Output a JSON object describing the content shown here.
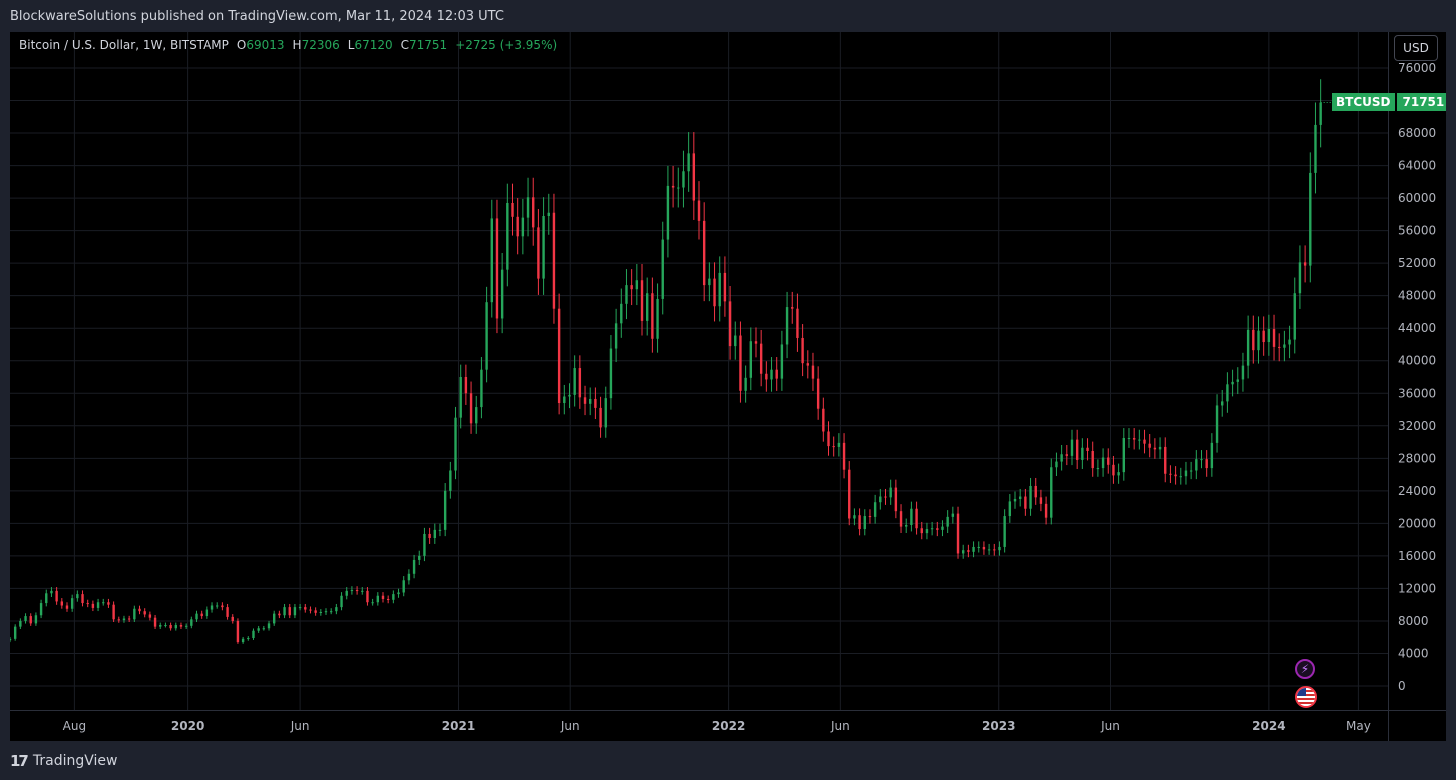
{
  "header": {
    "publisher_line": "BlockwareSolutions published on TradingView.com, Mar 11, 2024 12:03 UTC"
  },
  "legend": {
    "symbol": "Bitcoin / U.S. Dollar, 1W, BITSTAMP",
    "open_label": "O",
    "open": "69013",
    "high_label": "H",
    "high": "72306",
    "low_label": "L",
    "low": "67120",
    "close_label": "C",
    "close": "71751",
    "change": "+2725 (+3.95%)"
  },
  "currency_button": "USD",
  "price_tag": {
    "symbol": "BTCUSD",
    "price": "71751"
  },
  "footer": {
    "brand": "TradingView"
  },
  "colors": {
    "up": "#26a65b",
    "down": "#f23645",
    "bg": "#000000",
    "grid": "#1a1d24",
    "axis_text": "#b2b5be"
  },
  "chart_data": {
    "type": "candlestick",
    "title": "Bitcoin / U.S. Dollar, 1W, BITSTAMP",
    "x_ticks": [
      {
        "date": "2019-08-01",
        "label": "Aug"
      },
      {
        "date": "2020-01-01",
        "label": "2020"
      },
      {
        "date": "2020-06-01",
        "label": "Jun"
      },
      {
        "date": "2021-01-01",
        "label": "2021"
      },
      {
        "date": "2021-06-01",
        "label": "Jun"
      },
      {
        "date": "2022-01-01",
        "label": "2022"
      },
      {
        "date": "2022-06-01",
        "label": "Jun"
      },
      {
        "date": "2023-01-01",
        "label": "2023"
      },
      {
        "date": "2023-06-01",
        "label": "Jun"
      },
      {
        "date": "2024-01-01",
        "label": "2024"
      },
      {
        "date": "2024-05-01",
        "label": "May"
      }
    ],
    "y_ticks": [
      0,
      4000,
      8000,
      12000,
      16000,
      20000,
      24000,
      28000,
      32000,
      36000,
      40000,
      44000,
      48000,
      52000,
      56000,
      60000,
      64000,
      68000,
      72000,
      76000
    ],
    "ylim": [
      0,
      76000
    ],
    "xlim": [
      "2019-05-06",
      "2024-06-10"
    ],
    "series": [
      {
        "name": "BTCUSD",
        "close_points": [
          [
            "2019-05-06",
            5800
          ],
          [
            "2019-05-13",
            7300
          ],
          [
            "2019-05-20",
            8000
          ],
          [
            "2019-05-27",
            8600
          ],
          [
            "2019-06-03",
            7700
          ],
          [
            "2019-06-10",
            8700
          ],
          [
            "2019-06-17",
            10200
          ],
          [
            "2019-06-24",
            11400
          ],
          [
            "2019-07-01",
            11700
          ],
          [
            "2019-07-08",
            10400
          ],
          [
            "2019-07-15",
            9900
          ],
          [
            "2019-07-22",
            9500
          ],
          [
            "2019-07-29",
            10800
          ],
          [
            "2019-08-05",
            11300
          ],
          [
            "2019-08-12",
            10200
          ],
          [
            "2019-08-19",
            10100
          ],
          [
            "2019-08-26",
            9600
          ],
          [
            "2019-09-02",
            10300
          ],
          [
            "2019-09-09",
            10300
          ],
          [
            "2019-09-16",
            10000
          ],
          [
            "2019-09-23",
            8200
          ],
          [
            "2019-09-30",
            8100
          ],
          [
            "2019-10-07",
            8300
          ],
          [
            "2019-10-14",
            8200
          ],
          [
            "2019-10-21",
            9500
          ],
          [
            "2019-10-28",
            9200
          ],
          [
            "2019-11-04",
            8800
          ],
          [
            "2019-11-11",
            8400
          ],
          [
            "2019-11-18",
            7300
          ],
          [
            "2019-11-25",
            7500
          ],
          [
            "2019-12-02",
            7500
          ],
          [
            "2019-12-09",
            7100
          ],
          [
            "2019-12-16",
            7500
          ],
          [
            "2019-12-23",
            7300
          ],
          [
            "2019-12-30",
            7400
          ],
          [
            "2020-01-06",
            8200
          ],
          [
            "2020-01-13",
            8900
          ],
          [
            "2020-01-20",
            8600
          ],
          [
            "2020-01-27",
            9400
          ],
          [
            "2020-02-03",
            9900
          ],
          [
            "2020-02-10",
            9900
          ],
          [
            "2020-02-17",
            9700
          ],
          [
            "2020-02-24",
            8500
          ],
          [
            "2020-03-02",
            8000
          ],
          [
            "2020-03-09",
            5400
          ],
          [
            "2020-03-16",
            5800
          ],
          [
            "2020-03-23",
            5900
          ],
          [
            "2020-03-30",
            6800
          ],
          [
            "2020-04-06",
            7100
          ],
          [
            "2020-04-13",
            7100
          ],
          [
            "2020-04-20",
            7700
          ],
          [
            "2020-04-27",
            8900
          ],
          [
            "2020-05-04",
            8700
          ],
          [
            "2020-05-11",
            9700
          ],
          [
            "2020-05-18",
            8700
          ],
          [
            "2020-05-25",
            9700
          ],
          [
            "2020-06-01",
            9700
          ],
          [
            "2020-06-08",
            9400
          ],
          [
            "2020-06-15",
            9300
          ],
          [
            "2020-06-22",
            9000
          ],
          [
            "2020-06-29",
            9100
          ],
          [
            "2020-07-06",
            9200
          ],
          [
            "2020-07-13",
            9200
          ],
          [
            "2020-07-20",
            9700
          ],
          [
            "2020-07-27",
            11100
          ],
          [
            "2020-08-03",
            11700
          ],
          [
            "2020-08-10",
            11800
          ],
          [
            "2020-08-17",
            11700
          ],
          [
            "2020-08-24",
            11700
          ],
          [
            "2020-08-31",
            10300
          ],
          [
            "2020-09-07",
            10300
          ],
          [
            "2020-09-14",
            11100
          ],
          [
            "2020-09-21",
            10700
          ],
          [
            "2020-09-28",
            10600
          ],
          [
            "2020-10-05",
            11300
          ],
          [
            "2020-10-12",
            11500
          ],
          [
            "2020-10-19",
            13000
          ],
          [
            "2020-10-26",
            13800
          ],
          [
            "2020-11-02",
            15500
          ],
          [
            "2020-11-09",
            16000
          ],
          [
            "2020-11-16",
            18700
          ],
          [
            "2020-11-23",
            18200
          ],
          [
            "2020-11-30",
            19200
          ],
          [
            "2020-12-07",
            19200
          ],
          [
            "2020-12-14",
            24000
          ],
          [
            "2020-12-21",
            26500
          ],
          [
            "2020-12-28",
            33000
          ],
          [
            "2021-01-04",
            38000
          ],
          [
            "2021-01-11",
            36000
          ],
          [
            "2021-01-18",
            32300
          ],
          [
            "2021-01-25",
            34300
          ],
          [
            "2021-02-01",
            38900
          ],
          [
            "2021-02-08",
            47200
          ],
          [
            "2021-02-15",
            57500
          ],
          [
            "2021-02-22",
            45200
          ],
          [
            "2021-03-01",
            51200
          ],
          [
            "2021-03-08",
            59400
          ],
          [
            "2021-03-15",
            57700
          ],
          [
            "2021-03-22",
            55300
          ],
          [
            "2021-03-29",
            57600
          ],
          [
            "2021-04-05",
            60100
          ],
          [
            "2021-04-12",
            56400
          ],
          [
            "2021-04-19",
            50100
          ],
          [
            "2021-04-26",
            57800
          ],
          [
            "2021-05-03",
            58200
          ],
          [
            "2021-05-10",
            46400
          ],
          [
            "2021-05-17",
            34800
          ],
          [
            "2021-05-24",
            35600
          ],
          [
            "2021-05-31",
            35800
          ],
          [
            "2021-06-07",
            39100
          ],
          [
            "2021-06-14",
            35500
          ],
          [
            "2021-06-21",
            34700
          ],
          [
            "2021-06-28",
            35300
          ],
          [
            "2021-07-05",
            34200
          ],
          [
            "2021-07-12",
            31800
          ],
          [
            "2021-07-19",
            35400
          ],
          [
            "2021-07-26",
            41500
          ],
          [
            "2021-08-02",
            44600
          ],
          [
            "2021-08-09",
            47000
          ],
          [
            "2021-08-16",
            49300
          ],
          [
            "2021-08-23",
            48800
          ],
          [
            "2021-08-30",
            49900
          ],
          [
            "2021-09-06",
            44900
          ],
          [
            "2021-09-13",
            48300
          ],
          [
            "2021-09-20",
            42700
          ],
          [
            "2021-09-27",
            47600
          ],
          [
            "2021-10-04",
            54900
          ],
          [
            "2021-10-11",
            61500
          ],
          [
            "2021-10-18",
            61300
          ],
          [
            "2021-10-25",
            61300
          ],
          [
            "2021-11-01",
            63300
          ],
          [
            "2021-11-08",
            65500
          ],
          [
            "2021-11-15",
            59700
          ],
          [
            "2021-11-22",
            57200
          ],
          [
            "2021-11-29",
            49300
          ],
          [
            "2021-12-06",
            50100
          ],
          [
            "2021-12-13",
            46700
          ],
          [
            "2021-12-20",
            50800
          ],
          [
            "2021-12-27",
            47300
          ],
          [
            "2022-01-03",
            41800
          ],
          [
            "2022-01-10",
            43100
          ],
          [
            "2022-01-17",
            36300
          ],
          [
            "2022-01-24",
            37900
          ],
          [
            "2022-01-31",
            42400
          ],
          [
            "2022-02-07",
            42100
          ],
          [
            "2022-02-14",
            38400
          ],
          [
            "2022-02-21",
            37700
          ],
          [
            "2022-02-28",
            38900
          ],
          [
            "2022-03-07",
            37800
          ],
          [
            "2022-03-14",
            42000
          ],
          [
            "2022-03-21",
            46600
          ],
          [
            "2022-03-28",
            46400
          ],
          [
            "2022-04-04",
            42800
          ],
          [
            "2022-04-11",
            39700
          ],
          [
            "2022-04-18",
            39400
          ],
          [
            "2022-04-25",
            37800
          ],
          [
            "2022-05-02",
            34100
          ],
          [
            "2022-05-09",
            31300
          ],
          [
            "2022-05-16",
            29500
          ],
          [
            "2022-05-23",
            29400
          ],
          [
            "2022-05-30",
            29900
          ],
          [
            "2022-06-06",
            26600
          ],
          [
            "2022-06-13",
            20600
          ],
          [
            "2022-06-20",
            21000
          ],
          [
            "2022-06-27",
            19300
          ],
          [
            "2022-07-04",
            20900
          ],
          [
            "2022-07-11",
            20800
          ],
          [
            "2022-07-18",
            22600
          ],
          [
            "2022-07-25",
            23300
          ],
          [
            "2022-08-01",
            23200
          ],
          [
            "2022-08-08",
            24400
          ],
          [
            "2022-08-15",
            21500
          ],
          [
            "2022-08-22",
            19600
          ],
          [
            "2022-08-29",
            19800
          ],
          [
            "2022-09-05",
            21800
          ],
          [
            "2022-09-12",
            19400
          ],
          [
            "2022-09-19",
            18800
          ],
          [
            "2022-09-26",
            19300
          ],
          [
            "2022-10-03",
            19400
          ],
          [
            "2022-10-10",
            19200
          ],
          [
            "2022-10-17",
            19600
          ],
          [
            "2022-10-24",
            20800
          ],
          [
            "2022-10-31",
            21200
          ],
          [
            "2022-11-07",
            16300
          ],
          [
            "2022-11-14",
            16700
          ],
          [
            "2022-11-21",
            16500
          ],
          [
            "2022-11-28",
            17100
          ],
          [
            "2022-12-05",
            17100
          ],
          [
            "2022-12-12",
            16800
          ],
          [
            "2022-12-19",
            16800
          ],
          [
            "2022-12-26",
            16700
          ],
          [
            "2023-01-02",
            17100
          ],
          [
            "2023-01-09",
            20900
          ],
          [
            "2023-01-16",
            22700
          ],
          [
            "2023-01-23",
            23000
          ],
          [
            "2023-01-30",
            23300
          ],
          [
            "2023-02-06",
            21800
          ],
          [
            "2023-02-13",
            24600
          ],
          [
            "2023-02-20",
            23200
          ],
          [
            "2023-02-27",
            22400
          ],
          [
            "2023-03-06",
            20700
          ],
          [
            "2023-03-13",
            26900
          ],
          [
            "2023-03-20",
            27600
          ],
          [
            "2023-03-27",
            28500
          ],
          [
            "2023-04-03",
            28300
          ],
          [
            "2023-04-10",
            30300
          ],
          [
            "2023-04-17",
            27800
          ],
          [
            "2023-04-24",
            29300
          ],
          [
            "2023-05-01",
            28900
          ],
          [
            "2023-05-08",
            26800
          ],
          [
            "2023-05-15",
            26800
          ],
          [
            "2023-05-22",
            28100
          ],
          [
            "2023-05-29",
            27200
          ],
          [
            "2023-06-05",
            25900
          ],
          [
            "2023-06-12",
            26300
          ],
          [
            "2023-06-19",
            30500
          ],
          [
            "2023-06-26",
            30500
          ],
          [
            "2023-07-03",
            30300
          ],
          [
            "2023-07-10",
            30300
          ],
          [
            "2023-07-17",
            29800
          ],
          [
            "2023-07-24",
            29300
          ],
          [
            "2023-07-31",
            29100
          ],
          [
            "2023-08-07",
            29400
          ],
          [
            "2023-08-14",
            26100
          ],
          [
            "2023-08-21",
            26000
          ],
          [
            "2023-08-28",
            25800
          ],
          [
            "2023-09-04",
            25800
          ],
          [
            "2023-09-11",
            26500
          ],
          [
            "2023-09-18",
            26500
          ],
          [
            "2023-09-25",
            27900
          ],
          [
            "2023-10-02",
            27900
          ],
          [
            "2023-10-09",
            26800
          ],
          [
            "2023-10-16",
            29900
          ],
          [
            "2023-10-23",
            34500
          ],
          [
            "2023-10-30",
            35000
          ],
          [
            "2023-11-06",
            37100
          ],
          [
            "2023-11-13",
            37400
          ],
          [
            "2023-11-20",
            37700
          ],
          [
            "2023-11-27",
            39400
          ],
          [
            "2023-12-04",
            43800
          ],
          [
            "2023-12-11",
            41300
          ],
          [
            "2023-12-18",
            43700
          ],
          [
            "2023-12-25",
            42300
          ],
          [
            "2024-01-01",
            43900
          ],
          [
            "2024-01-08",
            41700
          ],
          [
            "2024-01-15",
            41600
          ],
          [
            "2024-01-22",
            42000
          ],
          [
            "2024-01-29",
            42600
          ],
          [
            "2024-02-05",
            48300
          ],
          [
            "2024-02-12",
            52100
          ],
          [
            "2024-02-19",
            51700
          ],
          [
            "2024-02-26",
            63100
          ],
          [
            "2024-03-04",
            69000
          ],
          [
            "2024-03-11",
            71751
          ]
        ]
      }
    ]
  }
}
